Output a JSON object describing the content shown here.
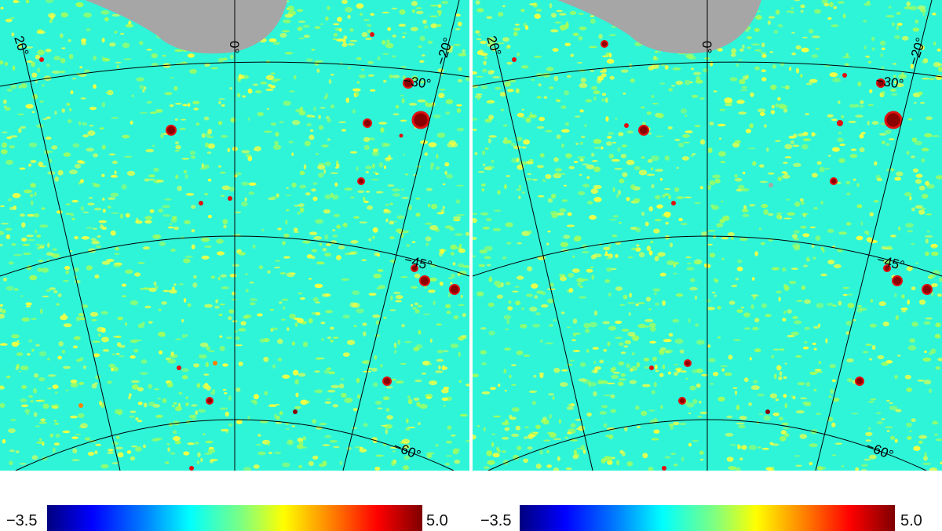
{
  "panels": [
    {
      "graticule_labels": {
        "lon_pos": "20°",
        "lon_zero": "0°",
        "lon_neg": "−20°",
        "lat_30": "−30°",
        "lat_45": "−45°",
        "lat_60": "−60°"
      },
      "colorbar": {
        "min": "−3.5",
        "max": "5.0"
      }
    },
    {
      "graticule_labels": {
        "lon_pos": "20°",
        "lon_zero": "0°",
        "lon_neg": "−20°",
        "lat_30": "−30°",
        "lat_45": "−45°",
        "lat_60": "−60°"
      },
      "colorbar": {
        "min": "−3.5",
        "max": "5.0"
      }
    }
  ],
  "colors": {
    "background_field": "#2ef5d8",
    "masked_region": "#a6a6a6",
    "noise_yellow": "#ffff3a",
    "noise_green": "#a6ff5a",
    "source_dark_red": "#8b0000",
    "source_red": "#e01010"
  }
}
